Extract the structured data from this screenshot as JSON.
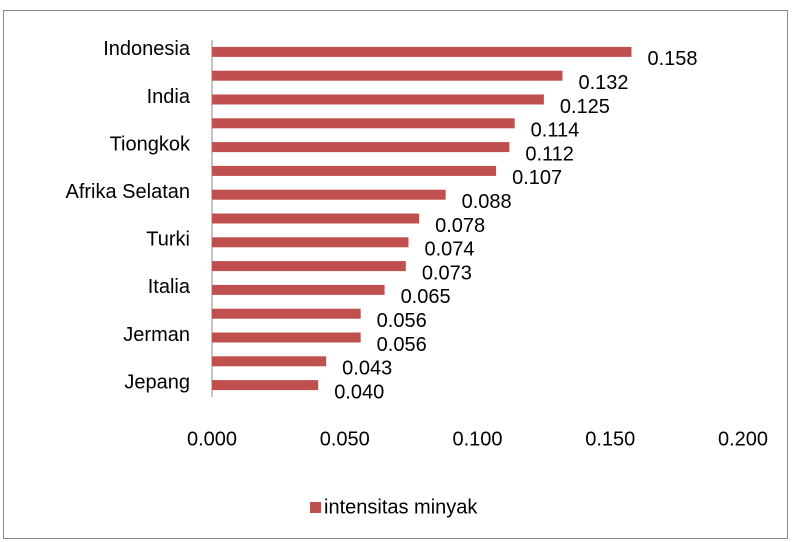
{
  "chart_data": {
    "type": "bar",
    "orientation": "horizontal",
    "categories": [
      "Indonesia",
      null,
      "India",
      null,
      "Tiongkok",
      null,
      "Afrika Selatan",
      null,
      "Turki",
      null,
      "Italia",
      null,
      "Jerman",
      null,
      "Jepang"
    ],
    "series": [
      {
        "name": "intensitas minyak",
        "color": "#c0504d",
        "values": [
          0.158,
          0.132,
          0.125,
          0.114,
          0.112,
          0.107,
          0.088,
          0.078,
          0.074,
          0.073,
          0.065,
          0.056,
          0.056,
          0.043,
          0.04
        ],
        "value_labels": [
          "0.158",
          "0.132",
          "0.125",
          "0.114",
          "0.112",
          "0.107",
          "0.088",
          "0.078",
          "0.074",
          "0.073",
          "0.065",
          "0.056",
          "0.056",
          "0.043",
          "0.040"
        ]
      }
    ],
    "xlim": [
      0,
      0.2
    ],
    "xticks": [
      {
        "value": 0,
        "label": "0.000"
      },
      {
        "value": 0.05,
        "label": "0.050"
      },
      {
        "value": 0.1,
        "label": "0.100"
      },
      {
        "value": 0.15,
        "label": "0.150"
      },
      {
        "value": 0.2,
        "label": "0.200"
      }
    ],
    "grid": false,
    "legend": "bottom"
  }
}
